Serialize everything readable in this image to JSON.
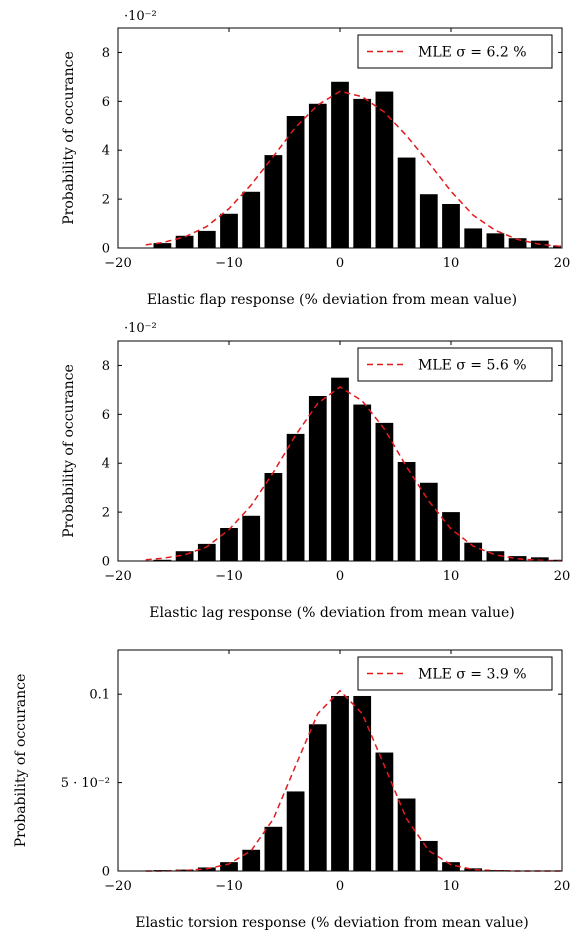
{
  "chart_data": [
    {
      "type": "bar",
      "xlabel": "Elastic flap response (% deviation from mean value)",
      "ylabel": "Probability of occurance",
      "y_exponent_label": "·10⁻²",
      "xlim": [
        -20,
        20
      ],
      "ylim": [
        0,
        0.09
      ],
      "xticks": [
        -20,
        -10,
        0,
        10,
        20
      ],
      "xtick_labels": [
        "−20",
        "−10",
        "0",
        "10",
        "20"
      ],
      "yticks": [
        0,
        0.02,
        0.04,
        0.06,
        0.08
      ],
      "ytick_labels": [
        "0",
        "2",
        "4",
        "6",
        "8"
      ],
      "grid": false,
      "legend_position": "top-right",
      "series": [
        {
          "kind": "bars",
          "bar_width": 1.6,
          "x": [
            -16,
            -14,
            -12,
            -10,
            -8,
            -6,
            -4,
            -2,
            0,
            2,
            4,
            6,
            8,
            10,
            12,
            14,
            16,
            18,
            20
          ],
          "values": [
            0.002,
            0.005,
            0.007,
            0.014,
            0.023,
            0.038,
            0.054,
            0.059,
            0.068,
            0.061,
            0.064,
            0.037,
            0.022,
            0.018,
            0.008,
            0.006,
            0.004,
            0.003,
            0.001
          ]
        },
        {
          "kind": "fit",
          "name": "MLE σ = 6.2 %",
          "color": "#e31a1c",
          "x": [
            -17.5,
            -16,
            -14,
            -12,
            -10,
            -8,
            -6,
            -4,
            -2,
            0,
            2,
            4,
            6,
            8,
            10,
            12,
            14,
            16,
            18,
            20
          ],
          "values": [
            0.0013,
            0.0022,
            0.0045,
            0.0088,
            0.0161,
            0.0259,
            0.0375,
            0.0494,
            0.0585,
            0.0641,
            0.0619,
            0.0556,
            0.0459,
            0.0349,
            0.0232,
            0.0134,
            0.0072,
            0.0035,
            0.0015,
            0.0006
          ]
        }
      ]
    },
    {
      "type": "bar",
      "xlabel": "Elastic lag response (% deviation from mean value)",
      "ylabel": "Probability of occurance",
      "y_exponent_label": "·10⁻²",
      "xlim": [
        -20,
        20
      ],
      "ylim": [
        0,
        0.09
      ],
      "xticks": [
        -20,
        -10,
        0,
        10,
        20
      ],
      "xtick_labels": [
        "−20",
        "−10",
        "0",
        "10",
        "20"
      ],
      "yticks": [
        0,
        0.02,
        0.04,
        0.06,
        0.08
      ],
      "ytick_labels": [
        "0",
        "2",
        "4",
        "6",
        "8"
      ],
      "grid": false,
      "legend_position": "top-right",
      "series": [
        {
          "kind": "bars",
          "bar_width": 1.6,
          "x": [
            -16,
            -14,
            -12,
            -10,
            -8,
            -6,
            -4,
            -2,
            0,
            2,
            4,
            6,
            8,
            10,
            12,
            14,
            16,
            18,
            20
          ],
          "values": [
            0.0005,
            0.004,
            0.007,
            0.0135,
            0.0185,
            0.036,
            0.052,
            0.0675,
            0.075,
            0.064,
            0.0565,
            0.0405,
            0.032,
            0.02,
            0.0075,
            0.004,
            0.002,
            0.0015,
            0.0005
          ]
        },
        {
          "kind": "fit",
          "name": "MLE σ = 5.6 %",
          "color": "#e31a1c",
          "x": [
            -17.5,
            -16,
            -14,
            -12,
            -10,
            -8,
            -6,
            -4,
            -2,
            0,
            2,
            4,
            6,
            8,
            10,
            12,
            14,
            16,
            18,
            20
          ],
          "values": [
            0.0005,
            0.0011,
            0.0025,
            0.0058,
            0.0128,
            0.0227,
            0.0363,
            0.0515,
            0.0645,
            0.0712,
            0.0655,
            0.054,
            0.0385,
            0.0245,
            0.0131,
            0.0061,
            0.0025,
            0.0009,
            0.0003,
            0.0001
          ]
        }
      ]
    },
    {
      "type": "bar",
      "xlabel": "Elastic torsion response (% deviation from mean value)",
      "ylabel": "Probability of occurance",
      "xlim": [
        -20,
        20
      ],
      "ylim": [
        0,
        0.125
      ],
      "xticks": [
        -20,
        -10,
        0,
        10,
        20
      ],
      "xtick_labels": [
        "−20",
        "−10",
        "0",
        "10",
        "20"
      ],
      "yticks": [
        0,
        0.05,
        0.1
      ],
      "ytick_labels": [
        "0",
        "5 · 10⁻²",
        "0.1"
      ],
      "grid": false,
      "legend_position": "top-right",
      "series": [
        {
          "kind": "bars",
          "bar_width": 1.6,
          "x": [
            -16,
            -14,
            -12,
            -10,
            -8,
            -6,
            -4,
            -2,
            0,
            2,
            4,
            6,
            8,
            10,
            12,
            14,
            16,
            18,
            20
          ],
          "values": [
            0.0005,
            0.0008,
            0.002,
            0.005,
            0.012,
            0.025,
            0.045,
            0.083,
            0.099,
            0.099,
            0.067,
            0.041,
            0.017,
            0.005,
            0.0015,
            0.0005,
            0.0002,
            0.0001,
            0.0001
          ]
        },
        {
          "kind": "fit",
          "name": "MLE σ = 3.9 %",
          "color": "#e31a1c",
          "x": [
            -17.5,
            -16,
            -14,
            -12,
            -10,
            -8,
            -6,
            -4,
            -2,
            0,
            2,
            4,
            6,
            8,
            10,
            12,
            14,
            16,
            18,
            20
          ],
          "values": [
            0.0,
            0.0,
            0.0003,
            0.0012,
            0.004,
            0.0115,
            0.0295,
            0.0595,
            0.089,
            0.102,
            0.089,
            0.0595,
            0.0295,
            0.0115,
            0.0035,
            0.0008,
            0.0002,
            0.0,
            0.0,
            0.0
          ]
        }
      ]
    }
  ]
}
